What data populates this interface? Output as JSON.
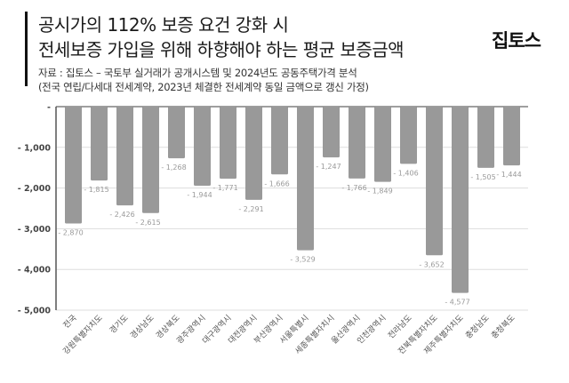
{
  "header": {
    "title_line1": "공시가의 112% 보증 요건 강화 시",
    "title_line2": "전세보증 가입을 위해 하향해야 하는 평균 보증금액",
    "source_line1": "자료 : 집토스 – 국토부 실거래가 공개시스템 및 2024년도 공동주택가격 분석",
    "source_line2": "(전국 연립/다세대 전세계약, 2023년 체결한 전세계약 동일 금액으로 갱신 가정)",
    "logo": "집토스"
  },
  "colors": {
    "bar": "#999999",
    "grid": "#dddddd",
    "axis": "#555555",
    "value_label": "#9a9a9a"
  },
  "chart_data": {
    "type": "bar",
    "title": "공시가의 112% 보증 요건 강화 시 전세보증 가입을 위해 하향해야 하는 평균 보증금액",
    "subtitle": "자료 : 집토스 – 국토부 실거래가 공개시스템 및 2024년도 공동주택가격 분석 (전국 연립/다세대 전세계약, 2023년 체결한 전세계약 동일 금액으로 갱신 가정)",
    "xlabel": "",
    "ylabel": "",
    "categories": [
      "전국",
      "강원특별자치도",
      "경기도",
      "경상남도",
      "경상북도",
      "광주광역시",
      "대구광역시",
      "대전광역시",
      "부산광역시",
      "서울특별시",
      "세종특별자치시",
      "울산광역시",
      "인천광역시",
      "전라남도",
      "전북특별자치도",
      "제주특별자치도",
      "충청남도",
      "충청북도"
    ],
    "values": [
      -2870,
      -1815,
      -2426,
      -2615,
      -1268,
      -1944,
      -1771,
      -2291,
      -1666,
      -3529,
      -1247,
      -1766,
      -1849,
      -1406,
      -3652,
      -4577,
      -1505,
      -1444
    ],
    "value_labels": [
      "- 2,870",
      "- 1,815",
      "- 2,426",
      "- 2,615",
      "- 1,268",
      "- 1,944",
      "- 1,771",
      "- 2,291",
      "- 1,666",
      "- 3,529",
      "- 1,247",
      "- 1,766",
      "- 1,849",
      "- 1,406",
      "- 3,652",
      "- 4,577",
      "- 1,505",
      "- 1,444"
    ],
    "yticks": [
      0,
      -1000,
      -2000,
      -3000,
      -4000,
      -5000
    ],
    "ytick_labels": [
      "-",
      "- 1,000",
      "- 2,000",
      "- 3,000",
      "- 4,000",
      "- 5,000"
    ],
    "ylim": [
      -5000,
      0
    ],
    "grid": true,
    "legend": null
  }
}
